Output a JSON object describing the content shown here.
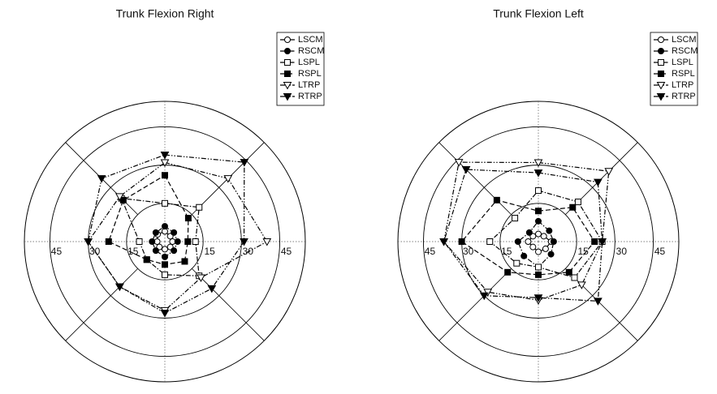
{
  "chart_data": [
    {
      "type": "radar",
      "title": "Trunk Flexion Right",
      "ylim": [
        0,
        55
      ],
      "yticks": [
        15,
        30,
        45
      ],
      "series": [
        {
          "name": "LSCM",
          "color": "#000000",
          "marker": "circle-open",
          "dash": "solid",
          "values": [
            4,
            3,
            3,
            3,
            3,
            3,
            3,
            4
          ]
        },
        {
          "name": "RSCM",
          "color": "#000000",
          "marker": "circle-filled",
          "dash": "dashdot",
          "values": [
            6,
            5,
            5,
            5,
            6,
            5,
            5,
            5
          ]
        },
        {
          "name": "LSPL",
          "color": "#000000",
          "marker": "square-open",
          "dash": "dashdot",
          "values": [
            15,
            19,
            12,
            19,
            13,
            10,
            10,
            24
          ]
        },
        {
          "name": "RSPL",
          "color": "#000000",
          "marker": "square-filled",
          "dash": "dashed",
          "values": [
            26,
            13,
            9,
            11,
            9,
            10,
            22,
            23
          ]
        },
        {
          "name": "LTRP",
          "color": "#000000",
          "marker": "triangle-open",
          "dash": "dashdotdot",
          "values": [
            31,
            35,
            40,
            20,
            27,
            25,
            30,
            25
          ]
        },
        {
          "name": "RTRP",
          "color": "#000000",
          "marker": "triangle-filled",
          "dash": "dashdotdot",
          "values": [
            34,
            44,
            31,
            26,
            28,
            25,
            30,
            35
          ]
        }
      ]
    },
    {
      "type": "radar",
      "title": "Trunk Flexion Left",
      "ylim": [
        0,
        55
      ],
      "yticks": [
        15,
        30,
        45
      ],
      "series": [
        {
          "name": "LSCM",
          "color": "#000000",
          "marker": "circle-open",
          "dash": "solid",
          "values": [
            3,
            3,
            5,
            4,
            4,
            3,
            4,
            3
          ]
        },
        {
          "name": "RSCM",
          "color": "#000000",
          "marker": "circle-filled",
          "dash": "dashdot",
          "values": [
            8,
            6,
            6,
            7,
            10,
            8,
            8,
            5
          ]
        },
        {
          "name": "LSPL",
          "color": "#000000",
          "marker": "square-open",
          "dash": "dashdot",
          "values": [
            20,
            22,
            25,
            20,
            10,
            12,
            19,
            13
          ]
        },
        {
          "name": "RSPL",
          "color": "#000000",
          "marker": "square-filled",
          "dash": "dashed",
          "values": [
            12,
            19,
            22,
            17,
            13,
            17,
            30,
            23
          ]
        },
        {
          "name": "LTRP",
          "color": "#000000",
          "marker": "triangle-open",
          "dash": "dashdotdot",
          "values": [
            31,
            39,
            25,
            24,
            23,
            28,
            37,
            44
          ]
        },
        {
          "name": "RTRP",
          "color": "#000000",
          "marker": "triangle-filled",
          "dash": "dashdotdot",
          "values": [
            27,
            33,
            25,
            33,
            22,
            30,
            37,
            40
          ]
        }
      ]
    }
  ]
}
